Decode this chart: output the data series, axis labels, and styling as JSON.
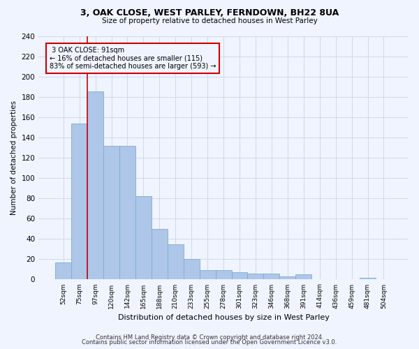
{
  "title1": "3, OAK CLOSE, WEST PARLEY, FERNDOWN, BH22 8UA",
  "title2": "Size of property relative to detached houses in West Parley",
  "xlabel": "Distribution of detached houses by size in West Parley",
  "ylabel": "Number of detached properties",
  "footer1": "Contains HM Land Registry data © Crown copyright and database right 2024.",
  "footer2": "Contains public sector information licensed under the Open Government Licence v3.0.",
  "bar_color": "#aec6e8",
  "bar_edge_color": "#7aadd4",
  "grid_color": "#d0d8e8",
  "annotation_box_color": "#cc0000",
  "vline_color": "#cc0000",
  "bin_labels": [
    "52sqm",
    "75sqm",
    "97sqm",
    "120sqm",
    "142sqm",
    "165sqm",
    "188sqm",
    "210sqm",
    "233sqm",
    "255sqm",
    "278sqm",
    "301sqm",
    "323sqm",
    "346sqm",
    "368sqm",
    "391sqm",
    "414sqm",
    "436sqm",
    "459sqm",
    "481sqm",
    "504sqm"
  ],
  "bar_values": [
    17,
    154,
    185,
    132,
    132,
    82,
    50,
    35,
    20,
    9,
    9,
    7,
    6,
    6,
    3,
    5,
    0,
    0,
    0,
    2,
    0
  ],
  "property_label": "3 OAK CLOSE: 91sqm",
  "smaller_pct": 16,
  "smaller_count": 115,
  "larger_pct": 83,
  "larger_count": 593,
  "vline_x": 1.5,
  "ylim": [
    0,
    240
  ],
  "yticks": [
    0,
    20,
    40,
    60,
    80,
    100,
    120,
    140,
    160,
    180,
    200,
    220,
    240
  ],
  "bg_color": "#f0f4ff"
}
